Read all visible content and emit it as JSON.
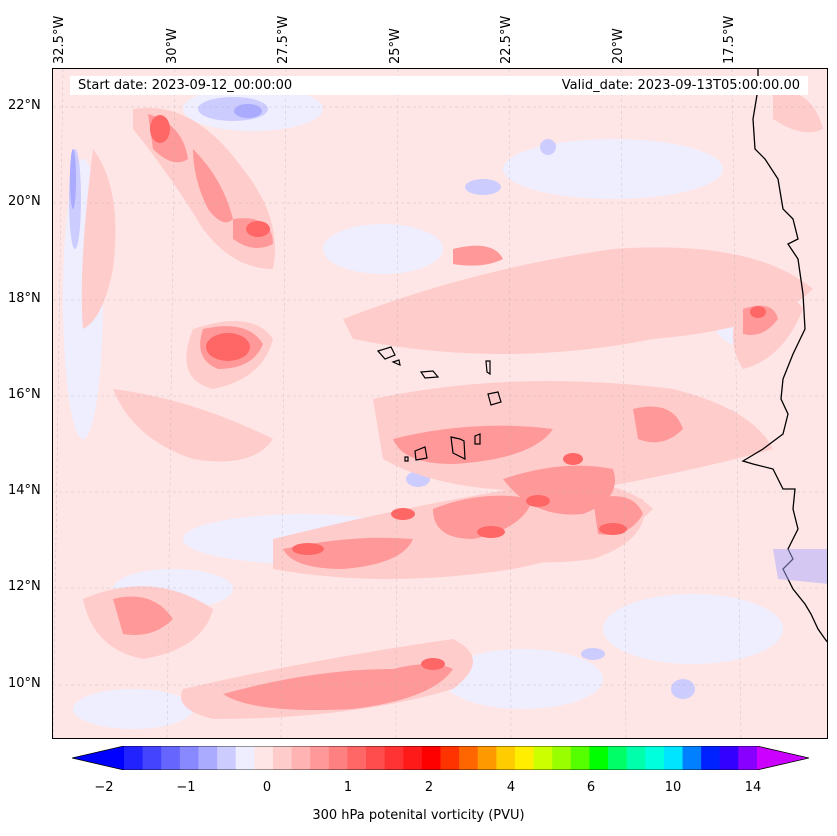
{
  "header": {
    "start_date": "Start date: 2023-09-12_00:00:00",
    "valid_date": "Valid_date: 2023-09-13T05:00:00.00"
  },
  "axes": {
    "longitude_labels": [
      "32.5°W",
      "30°W",
      "27.5°W",
      "25°W",
      "22.5°W",
      "20°W",
      "17.5°W"
    ],
    "latitude_labels": [
      "22°N",
      "20°N",
      "18°N",
      "16°N",
      "14°N",
      "12°N",
      "10°N"
    ]
  },
  "colorbar": {
    "label": "300 hPa potenital vorticity (PVU)",
    "tick_labels": [
      "−2",
      "−1",
      "0",
      "1",
      "2",
      "4",
      "6",
      "10",
      "14"
    ],
    "colors": [
      "#0000ff",
      "#2222ff",
      "#4444ff",
      "#6666ff",
      "#8888ff",
      "#aaaaff",
      "#ccccff",
      "#eeeeff",
      "#ffe6e6",
      "#ffcccc",
      "#ffb3b3",
      "#ff9999",
      "#ff8080",
      "#ff6666",
      "#ff4d4d",
      "#ff3333",
      "#ff1a1a",
      "#ff0000",
      "#ff3300",
      "#ff6600",
      "#ff9900",
      "#ffcc00",
      "#ffee00",
      "#ccff00",
      "#99ff00",
      "#55ff00",
      "#00ff00",
      "#00ff66",
      "#00ffaa",
      "#00ffdd",
      "#00e5ff",
      "#0080ff",
      "#0022ff",
      "#3300ff",
      "#8800ff",
      "#cc00ff"
    ]
  },
  "colors": {
    "background_field": "#ffe6e6",
    "positive_low": "#ffcccc",
    "positive_mid": "#ff9999",
    "positive_high": "#ff6666",
    "negative_low": "#eeeeff",
    "negative_mid": "#ccccff",
    "negative_high": "#aaaaff"
  }
}
